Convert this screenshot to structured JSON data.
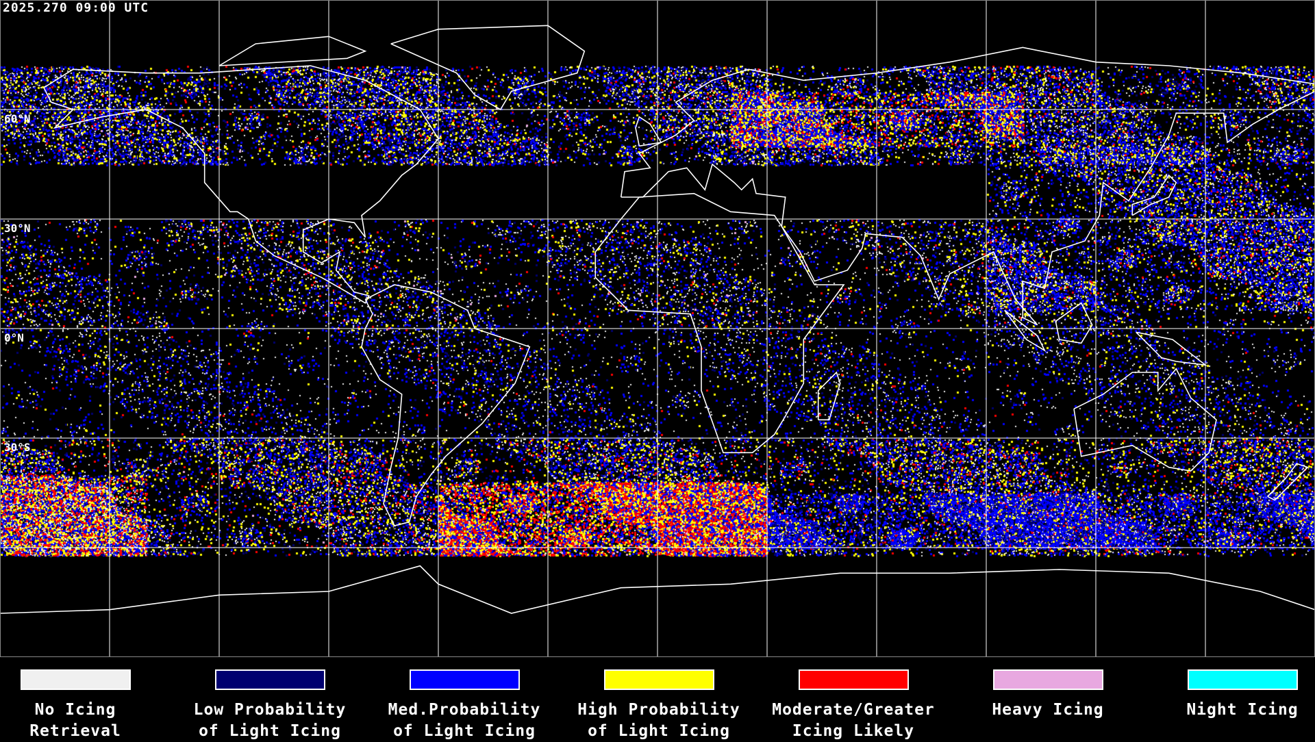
{
  "title": "2025.270 09:00 UTC",
  "latitude_labels": [
    "60°N",
    "30°N",
    "0°N",
    "30°S"
  ],
  "legend": [
    {
      "line1": "No Icing",
      "line2": "Retrieval",
      "color": "#f0f0f0"
    },
    {
      "line1": "Low Probability",
      "line2": "of Light Icing",
      "color": "#000070"
    },
    {
      "line1": "Med.Probability",
      "line2": "of Light Icing",
      "color": "#0000ff"
    },
    {
      "line1": "High Probability",
      "line2": "of Light Icing",
      "color": "#ffff00"
    },
    {
      "line1": "Moderate/Greater",
      "line2": "Icing Likely",
      "color": "#ff0000"
    },
    {
      "line1": "Heavy Icing",
      "line2": "",
      "color": "#e8a8e0"
    },
    {
      "line1": "Night Icing",
      "line2": "",
      "color": "#00ffff"
    }
  ],
  "map": {
    "projection": "equirectangular",
    "grid_spacing_degrees": 30,
    "grid_color": "#ffffff",
    "coastline_color": "#ffffff",
    "background": "#000000"
  }
}
